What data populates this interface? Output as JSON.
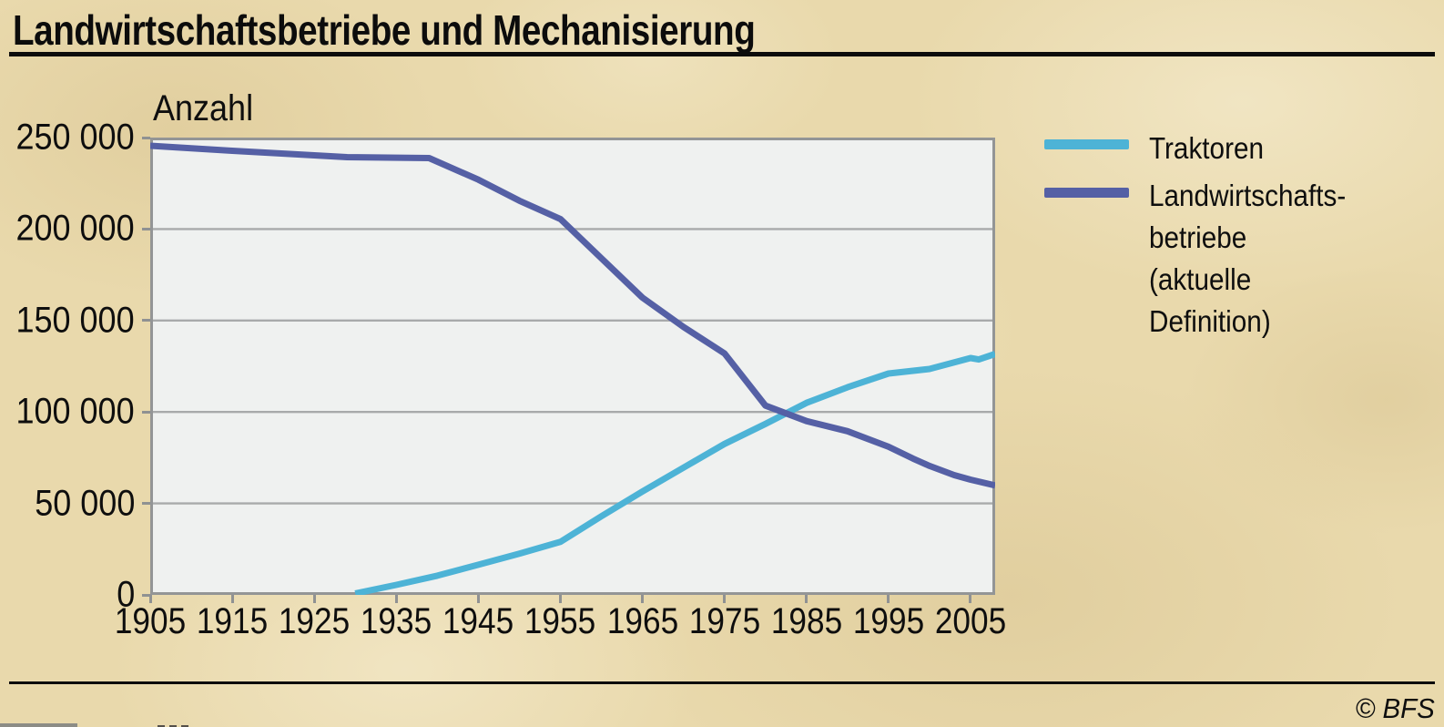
{
  "header": {
    "title": "Landwirtschaftsbetriebe und Mechanisierung"
  },
  "axes": {
    "y_title": "Anzahl"
  },
  "legend": {
    "position": "right",
    "items": [
      {
        "label": "Traktoren",
        "color": "#4db3d6"
      },
      {
        "label": "Landwirtschafts-\nbetriebe (aktuelle\nDefinition)",
        "color": "#5560a5"
      }
    ]
  },
  "footer": {
    "copyright": "© BFS"
  },
  "colors": {
    "page_background": "#e9d9ac",
    "plot_background": "#eff1f0",
    "gridline": "#a8aaab",
    "axis_border": "#939596",
    "traktoren_line": "#4db3d6",
    "betriebe_line": "#5560a5",
    "text": "#0e0e0e"
  },
  "chart_data": {
    "type": "line",
    "title": "Landwirtschaftsbetriebe und Mechanisierung",
    "xlabel": "",
    "ylabel": "Anzahl",
    "xlim": [
      1905,
      2008
    ],
    "ylim": [
      0,
      250000
    ],
    "grid": "horizontal",
    "legend_position": "right",
    "x_ticks": [
      1905,
      1915,
      1925,
      1935,
      1945,
      1955,
      1965,
      1975,
      1985,
      1995,
      2005
    ],
    "y_ticks": [
      {
        "value": 0,
        "label": "0"
      },
      {
        "value": 50000,
        "label": "50 000"
      },
      {
        "value": 100000,
        "label": "100 000"
      },
      {
        "value": 150000,
        "label": "150 000"
      },
      {
        "value": 200000,
        "label": "200 000"
      },
      {
        "value": 250000,
        "label": "250 000"
      }
    ],
    "series": [
      {
        "name": "Traktoren",
        "color": "#4db3d6",
        "points": [
          [
            1930,
            800
          ],
          [
            1935,
            5500
          ],
          [
            1940,
            10500
          ],
          [
            1945,
            16500
          ],
          [
            1950,
            22500
          ],
          [
            1955,
            29000
          ],
          [
            1960,
            43000
          ],
          [
            1965,
            56500
          ],
          [
            1970,
            69500
          ],
          [
            1975,
            82500
          ],
          [
            1980,
            93500
          ],
          [
            1985,
            105000
          ],
          [
            1990,
            113500
          ],
          [
            1995,
            121000
          ],
          [
            2000,
            123500
          ],
          [
            2005,
            129500
          ],
          [
            2006,
            128700
          ],
          [
            2008,
            131700
          ]
        ]
      },
      {
        "name": "Landwirtschaftsbetriebe (aktuelle Definition)",
        "color": "#5560a5",
        "points": [
          [
            1905,
            245500
          ],
          [
            1915,
            242800
          ],
          [
            1925,
            240300
          ],
          [
            1929,
            239300
          ],
          [
            1939,
            238800
          ],
          [
            1945,
            227000
          ],
          [
            1950,
            215500
          ],
          [
            1955,
            205500
          ],
          [
            1960,
            184000
          ],
          [
            1965,
            162500
          ],
          [
            1970,
            146500
          ],
          [
            1975,
            132000
          ],
          [
            1980,
            103500
          ],
          [
            1985,
            95000
          ],
          [
            1990,
            89500
          ],
          [
            1995,
            81000
          ],
          [
            1998,
            74500
          ],
          [
            2000,
            70500
          ],
          [
            2003,
            65500
          ],
          [
            2005,
            63000
          ],
          [
            2008,
            59800
          ]
        ]
      }
    ]
  }
}
